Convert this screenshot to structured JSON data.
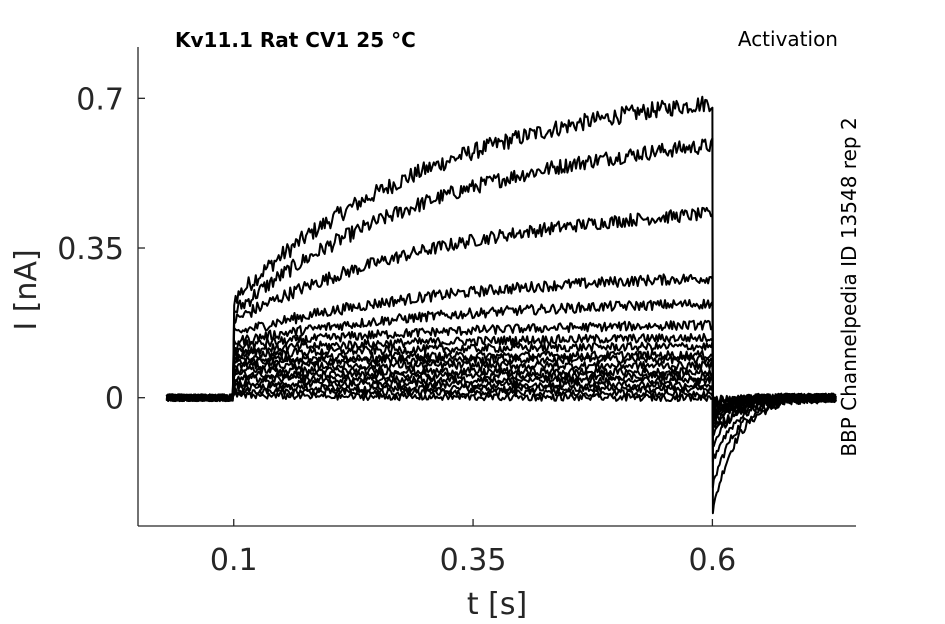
{
  "chart_data": {
    "type": "line",
    "title": "Kv11.1  Rat  CV1  25 °C",
    "protocol_label": "Activation",
    "side_label": "BBP Channelpedia ID 13548 rep 2",
    "xlabel": "t [s]",
    "ylabel": "I [nA]",
    "xlim": [
      -0.0,
      0.75
    ],
    "ylim": [
      -0.3,
      0.82
    ],
    "xticks": [
      0.1,
      0.35,
      0.6
    ],
    "xtick_labels": [
      "0.1",
      "0.35",
      "0.6"
    ],
    "yticks": [
      0,
      0.35,
      0.7
    ],
    "ytick_labels": [
      "0",
      "0.35",
      "0.7"
    ],
    "grid": false,
    "stimulus": {
      "pulse_start": 0.1,
      "pulse_end": 0.6,
      "trace_start": 0.03,
      "trace_end": 0.73
    },
    "series": [
      {
        "values": {
          "jump": 0.23,
          "end": 0.69,
          "tail_peak": -0.27
        }
      },
      {
        "values": {
          "jump": 0.2,
          "end": 0.59,
          "tail_peak": -0.21
        }
      },
      {
        "values": {
          "jump": 0.18,
          "end": 0.43,
          "tail_peak": -0.15
        }
      },
      {
        "values": {
          "jump": 0.15,
          "end": 0.28,
          "tail_peak": -0.11
        }
      },
      {
        "values": {
          "jump": 0.13,
          "end": 0.22,
          "tail_peak": -0.09
        }
      },
      {
        "values": {
          "jump": 0.12,
          "end": 0.17,
          "tail_peak": -0.07
        }
      },
      {
        "values": {
          "jump": 0.11,
          "end": 0.14,
          "tail_peak": -0.06
        }
      },
      {
        "values": {
          "jump": 0.1,
          "end": 0.12,
          "tail_peak": -0.05
        }
      },
      {
        "values": {
          "jump": 0.09,
          "end": 0.1,
          "tail_peak": -0.045
        }
      },
      {
        "values": {
          "jump": 0.085,
          "end": 0.09,
          "tail_peak": -0.04
        }
      },
      {
        "values": {
          "jump": 0.075,
          "end": 0.075,
          "tail_peak": -0.035
        }
      },
      {
        "values": {
          "jump": 0.065,
          "end": 0.06,
          "tail_peak": -0.03
        }
      },
      {
        "values": {
          "jump": 0.055,
          "end": 0.05,
          "tail_peak": -0.025
        }
      },
      {
        "values": {
          "jump": 0.045,
          "end": 0.04,
          "tail_peak": -0.02
        }
      },
      {
        "values": {
          "jump": 0.035,
          "end": 0.03,
          "tail_peak": -0.015
        }
      },
      {
        "values": {
          "jump": 0.025,
          "end": 0.02,
          "tail_peak": -0.01
        }
      },
      {
        "values": {
          "jump": 0.015,
          "end": 0.01,
          "tail_peak": -0.008
        }
      },
      {
        "values": {
          "jump": 0.005,
          "end": 0.0,
          "tail_peak": -0.005
        }
      }
    ]
  }
}
